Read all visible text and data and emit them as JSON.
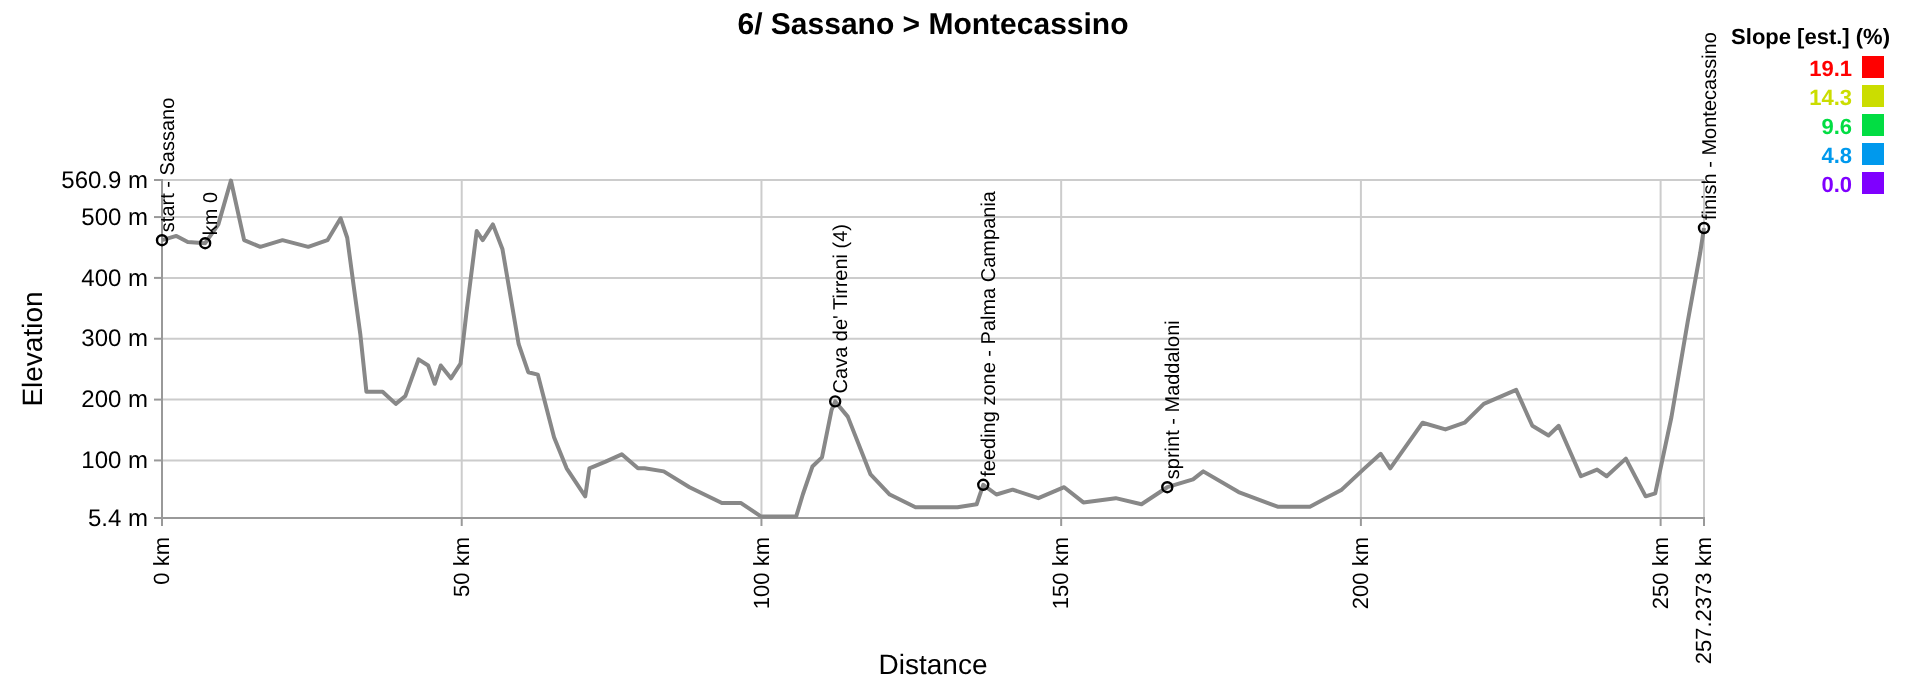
{
  "chart_data": {
    "type": "line",
    "title": "6/ Sassano > Montecassino",
    "xlabel": "Distance",
    "ylabel": "Elevation",
    "xlim": [
      0,
      257.2373
    ],
    "xticks": [
      {
        "value": 0,
        "label": "0 km"
      },
      {
        "value": 50,
        "label": "50 km"
      },
      {
        "value": 100,
        "label": "100 km"
      },
      {
        "value": 150,
        "label": "150 km"
      },
      {
        "value": 200,
        "label": "200 km"
      },
      {
        "value": 250,
        "label": "250 km"
      },
      {
        "value": 257.2373,
        "label": "257.2373 km"
      }
    ],
    "ylim": [
      5.4,
      560.9
    ],
    "yticks": [
      {
        "value": 5.4,
        "label": "5.4 m"
      },
      {
        "value": 100,
        "label": "100 m"
      },
      {
        "value": 200,
        "label": "200 m"
      },
      {
        "value": 300,
        "label": "300 m"
      },
      {
        "value": 400,
        "label": "400 m"
      },
      {
        "value": 500,
        "label": "500 m"
      },
      {
        "value": 560.9,
        "label": "560.9 m"
      }
    ],
    "grid": true,
    "marker": "none",
    "line_style": "solid",
    "clabel": "Slope [est.] (%)",
    "cticks": [
      19.1,
      14.3,
      9.6,
      4.8,
      {
        "value": 0,
        "label": "0.0"
      }
    ],
    "series": [
      {
        "color": "#888888",
        "x": [
          0,
          2.4,
          4.3,
          7.2,
          9.4,
          11.5,
          13.7,
          16.4,
          20.1,
          24.4,
          27.6,
          29.8,
          30.9,
          32.0,
          33.1,
          34.1,
          36.8,
          39.0,
          40.6,
          42.8,
          44.4,
          45.5,
          46.5,
          48.2,
          49.8,
          50.8,
          52.5,
          53.5,
          55.2,
          56.8,
          59.5,
          61.1,
          62.7,
          65.4,
          67.5,
          70.6,
          71.3,
          74.0,
          76.7,
          79.4,
          80.5,
          83.7,
          88.0,
          93.4,
          96.6,
          99.9,
          105.8,
          106.9,
          108.5,
          110.1,
          111.7,
          112.3,
          114.4,
          118.2,
          121.4,
          125.7,
          132.7,
          135.9,
          137.0,
          139.2,
          141.9,
          146.2,
          150.5,
          153.7,
          159.1,
          163.4,
          167.7,
          172.0,
          173.7,
          179.6,
          186.1,
          191.5,
          196.8,
          200.6,
          203.3,
          204.9,
          210.3,
          214.1,
          217.3,
          220.5,
          225.9,
          228.6,
          231.3,
          233.0,
          236.7,
          239.4,
          241.0,
          244.2,
          247.5,
          249.1,
          251.8,
          254.5,
          256.6,
          257.2373
        ],
        "values": [
          462,
          469,
          459,
          457,
          488,
          560,
          462,
          451,
          462,
          451,
          462,
          498,
          466,
          385,
          306,
          213,
          213,
          193,
          206,
          266,
          256,
          226,
          256,
          235,
          259,
          344,
          477,
          462,
          488,
          447,
          291,
          245,
          241,
          138,
          87,
          41,
          87,
          98,
          110,
          87,
          87,
          82,
          56,
          30,
          30,
          8,
          8,
          44,
          90,
          105,
          183,
          197,
          172,
          77,
          44,
          23,
          23,
          28,
          60,
          44,
          52,
          38,
          56,
          31,
          38,
          28,
          56,
          69,
          82,
          48,
          24,
          24,
          52,
          87,
          111,
          87,
          162,
          151,
          162,
          193,
          216,
          157,
          141,
          157,
          74,
          85,
          74,
          103,
          41,
          46,
          171,
          327,
          441,
          482
        ]
      }
    ],
    "annotations": [
      {
        "text": "start - Sassano",
        "x": 0,
        "y": 462
      },
      {
        "text": "km 0",
        "x": 7.2,
        "y": 457
      },
      {
        "text": "Cava de' Tirreni (4)",
        "x": 112.3,
        "y": 197
      },
      {
        "text": "feeding zone - Palma Campania",
        "x": 137.0,
        "y": 60
      },
      {
        "text": "sprint - Maddaloni",
        "x": 167.7,
        "y": 56
      },
      {
        "text": "finish - Montecassino",
        "x": 257.2373,
        "y": 482
      }
    ]
  }
}
